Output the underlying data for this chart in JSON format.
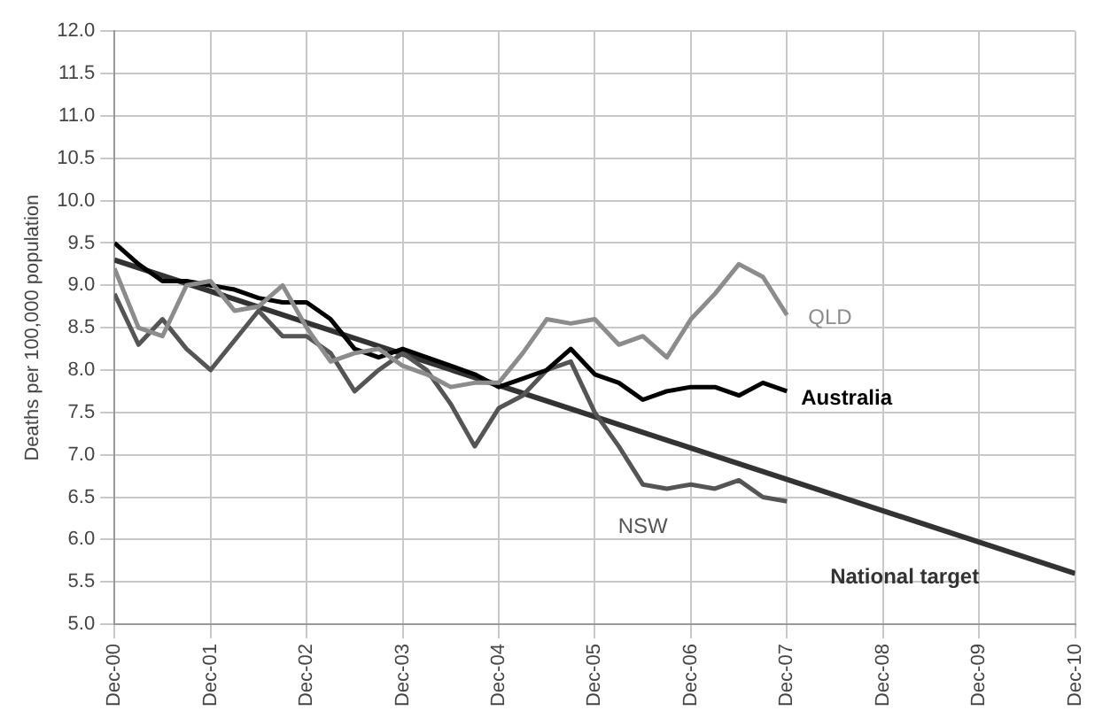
{
  "chart_data": {
    "type": "line",
    "ylabel": "Deaths per 100,000 population",
    "grid": true,
    "legend": false,
    "marker": "none",
    "line_style": "solid",
    "ylim": [
      5,
      12
    ],
    "yticks": [
      {
        "value": 5,
        "label": "5.0"
      },
      {
        "value": 5.5,
        "label": "5.5"
      },
      {
        "value": 6,
        "label": "6.0"
      },
      {
        "value": 6.5,
        "label": "6.5"
      },
      {
        "value": 7,
        "label": "7.0"
      },
      {
        "value": 7.5,
        "label": "7.5"
      },
      {
        "value": 8,
        "label": "8.0"
      },
      {
        "value": 8.5,
        "label": "8.5"
      },
      {
        "value": 9,
        "label": "9.0"
      },
      {
        "value": 9.5,
        "label": "9.5"
      },
      {
        "value": 10,
        "label": "10.0"
      },
      {
        "value": 10.5,
        "label": "10.5"
      },
      {
        "value": 11,
        "label": "11.0"
      },
      {
        "value": 11.5,
        "label": "11.5"
      },
      {
        "value": 12,
        "label": "12.0"
      }
    ],
    "xlim": [
      "2000-12",
      "2010-12"
    ],
    "xticks": [
      {
        "value": "2000-12",
        "label": "Dec-00"
      },
      {
        "value": "2001-12",
        "label": "Dec-01"
      },
      {
        "value": "2002-12",
        "label": "Dec-02"
      },
      {
        "value": "2003-12",
        "label": "Dec-03"
      },
      {
        "value": "2004-12",
        "label": "Dec-04"
      },
      {
        "value": "2005-12",
        "label": "Dec-05"
      },
      {
        "value": "2006-12",
        "label": "Dec-06"
      },
      {
        "value": "2007-12",
        "label": "Dec-07"
      },
      {
        "value": "2008-12",
        "label": "Dec-08"
      },
      {
        "value": "2009-12",
        "label": "Dec-09"
      },
      {
        "value": "2010-12",
        "label": "Dec-10"
      }
    ],
    "x": [
      "2000-12",
      "2001-03",
      "2001-06",
      "2001-09",
      "2001-12",
      "2002-03",
      "2002-06",
      "2002-09",
      "2002-12",
      "2003-03",
      "2003-06",
      "2003-09",
      "2003-12",
      "2004-03",
      "2004-06",
      "2004-09",
      "2004-12",
      "2005-03",
      "2005-06",
      "2005-09",
      "2005-12",
      "2006-03",
      "2006-06",
      "2006-09",
      "2006-12",
      "2007-03",
      "2007-06",
      "2007-09",
      "2007-12"
    ],
    "series": [
      {
        "name": "QLD",
        "color": "#8c8c8c",
        "values": [
          9.2,
          8.5,
          8.4,
          9.0,
          9.05,
          8.7,
          8.75,
          9.0,
          8.5,
          8.1,
          8.2,
          8.25,
          8.05,
          7.95,
          7.8,
          7.85,
          7.85,
          8.2,
          8.6,
          8.55,
          8.6,
          8.3,
          8.4,
          8.15,
          8.6,
          8.9,
          9.25,
          9.1,
          8.65
        ]
      },
      {
        "name": "Australia",
        "color": "#000000",
        "values": [
          9.5,
          9.25,
          9.05,
          9.05,
          9.0,
          8.95,
          8.85,
          8.8,
          8.8,
          8.6,
          8.25,
          8.15,
          8.25,
          8.15,
          8.05,
          7.95,
          7.8,
          7.9,
          8.0,
          8.25,
          7.95,
          7.85,
          7.65,
          7.75,
          7.8,
          7.8,
          7.7,
          7.85,
          7.75
        ]
      },
      {
        "name": "NSW",
        "color": "#555555",
        "values": [
          8.9,
          8.3,
          8.6,
          8.25,
          8.0,
          8.35,
          8.7,
          8.4,
          8.4,
          8.2,
          7.75,
          8.0,
          8.2,
          8.0,
          7.6,
          7.1,
          7.55,
          7.7,
          8.0,
          8.1,
          7.5,
          7.1,
          6.65,
          6.6,
          6.65,
          6.6,
          6.7,
          6.5,
          6.45
        ]
      },
      {
        "name": "National target",
        "color": "#333333",
        "x": [
          "2000-12",
          "2010-12"
        ],
        "values": [
          9.3,
          5.6
        ]
      }
    ]
  }
}
